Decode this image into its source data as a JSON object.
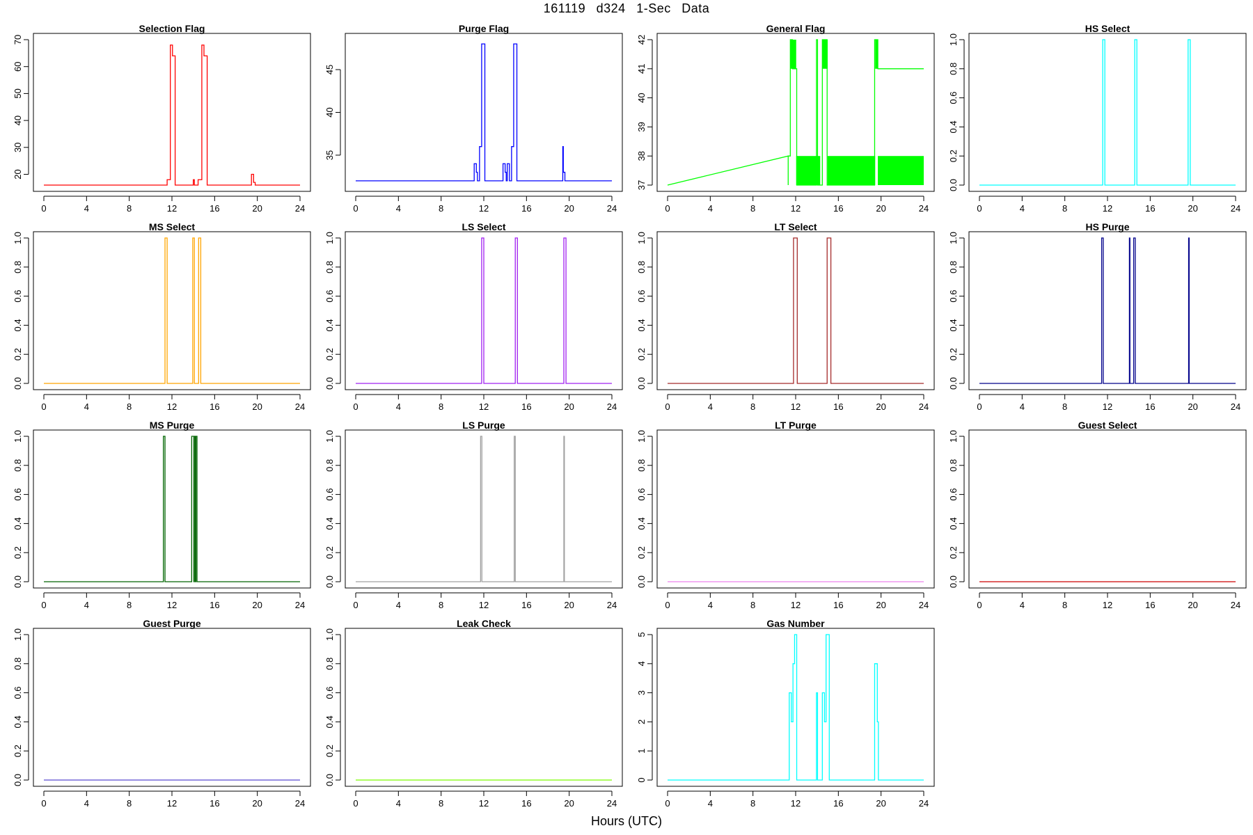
{
  "figure": {
    "title": "161119   d324   1-Sec Data",
    "xlabel": "Hours (UTC)"
  },
  "chart_data": [
    {
      "type": "line",
      "title": "Selection Flag",
      "color": "#ff0000",
      "xlim": [
        0,
        24
      ],
      "ylim": [
        16,
        70
      ],
      "xticks": [
        0,
        4,
        8,
        12,
        16,
        20,
        24
      ],
      "yticks": [
        20,
        30,
        40,
        50,
        60,
        70
      ],
      "series": [
        {
          "x": [
            0,
            11.55,
            11.55,
            11.85,
            11.85,
            12.05,
            12.05,
            12.3,
            12.3,
            14.0,
            14.0,
            14.1,
            14.1,
            14.45,
            14.45,
            14.8,
            14.8,
            15.0,
            15.0,
            15.3,
            15.3,
            19.45,
            19.45,
            19.65,
            19.65,
            19.8,
            19.8,
            24
          ],
          "y": [
            16,
            16,
            18,
            18,
            68,
            68,
            64,
            64,
            16,
            16,
            18,
            18,
            16,
            16,
            18,
            18,
            68,
            68,
            64,
            64,
            16,
            16,
            20,
            20,
            17,
            17,
            16,
            16
          ]
        }
      ]
    },
    {
      "type": "line",
      "title": "Purge Flag",
      "color": "#0000ff",
      "xlim": [
        0,
        24
      ],
      "ylim": [
        31.5,
        48.5
      ],
      "xticks": [
        0,
        4,
        8,
        12,
        16,
        20,
        24
      ],
      "yticks": [
        35,
        40,
        45
      ],
      "series": [
        {
          "x": [
            0,
            11.1,
            11.1,
            11.3,
            11.3,
            11.4,
            11.4,
            11.6,
            11.6,
            11.8,
            11.8,
            12.1,
            12.1,
            13.8,
            13.8,
            14.0,
            14.0,
            14.1,
            14.1,
            14.2,
            14.2,
            14.4,
            14.4,
            14.6,
            14.6,
            14.8,
            14.8,
            15.1,
            15.1,
            19.4,
            19.4,
            19.45,
            19.45,
            19.6,
            19.6,
            24
          ],
          "y": [
            32,
            32,
            34,
            34,
            33,
            33,
            32,
            32,
            36,
            36,
            48,
            48,
            32,
            32,
            34,
            34,
            33,
            33,
            32,
            32,
            34,
            34,
            32,
            32,
            36,
            36,
            48,
            48,
            32,
            32,
            36,
            36,
            33,
            33,
            32,
            32
          ]
        }
      ]
    },
    {
      "type": "line",
      "title": "General Flag",
      "color": "#00ff00",
      "xlim": [
        0,
        24
      ],
      "ylim": [
        37,
        42
      ],
      "xticks": [
        0,
        4,
        8,
        12,
        16,
        20,
        24
      ],
      "yticks": [
        37,
        38,
        39,
        40,
        41,
        42
      ],
      "series": [
        {
          "x": [
            0,
            11.3,
            11.3,
            11.3,
            11.5,
            11.5,
            11.7,
            11.7,
            12.1,
            12.1,
            13.95,
            13.95,
            14.05,
            14.05,
            14.5,
            14.5,
            14.95,
            14.95,
            19.4,
            19.4,
            19.7,
            19.7,
            24
          ],
          "y": [
            37,
            38,
            37,
            38,
            38,
            42,
            42,
            41,
            41,
            37,
            37,
            42,
            42,
            37,
            37,
            42,
            42,
            37,
            37,
            42,
            42,
            41,
            41
          ]
        }
      ],
      "filled_bands": [
        {
          "x0": 11.5,
          "x1": 12.05,
          "y0": 41,
          "y1": 42
        },
        {
          "x0": 12.05,
          "x1": 14.3,
          "y0": 37,
          "y1": 38
        },
        {
          "x0": 14.5,
          "x1": 15.0,
          "y0": 41,
          "y1": 42
        },
        {
          "x0": 15.0,
          "x1": 19.45,
          "y0": 37,
          "y1": 38
        },
        {
          "x0": 19.45,
          "x1": 19.7,
          "y0": 41,
          "y1": 42
        },
        {
          "x0": 19.7,
          "x1": 24.0,
          "y0": 37,
          "y1": 38
        }
      ]
    },
    {
      "type": "line",
      "title": "HS Select",
      "color": "#00ffff",
      "xlim": [
        0,
        24
      ],
      "ylim": [
        0,
        1
      ],
      "xticks": [
        0,
        4,
        8,
        12,
        16,
        20,
        24
      ],
      "yticks": [
        0.0,
        0.2,
        0.4,
        0.6,
        0.8,
        1.0
      ],
      "series": [
        {
          "x": [
            0,
            11.55,
            11.55,
            11.75,
            11.75,
            14.55,
            14.55,
            14.75,
            14.75,
            19.55,
            19.55,
            19.75,
            19.75,
            24
          ],
          "y": [
            0,
            0,
            1,
            1,
            0,
            0,
            1,
            1,
            0,
            0,
            1,
            1,
            0,
            0
          ]
        }
      ]
    },
    {
      "type": "line",
      "title": "MS Select",
      "color": "#ffa500",
      "xlim": [
        0,
        24
      ],
      "ylim": [
        0,
        1
      ],
      "xticks": [
        0,
        4,
        8,
        12,
        16,
        20,
        24
      ],
      "yticks": [
        0.0,
        0.2,
        0.4,
        0.6,
        0.8,
        1.0
      ],
      "series": [
        {
          "x": [
            0,
            11.35,
            11.35,
            11.55,
            11.55,
            13.95,
            13.95,
            14.1,
            14.1,
            14.5,
            14.5,
            14.7,
            14.7,
            24
          ],
          "y": [
            0,
            0,
            1,
            1,
            0,
            0,
            1,
            1,
            0,
            0,
            1,
            1,
            0,
            0
          ]
        }
      ]
    },
    {
      "type": "line",
      "title": "LS Select",
      "color": "#a020f0",
      "xlim": [
        0,
        24
      ],
      "ylim": [
        0,
        1
      ],
      "xticks": [
        0,
        4,
        8,
        12,
        16,
        20,
        24
      ],
      "yticks": [
        0.0,
        0.2,
        0.4,
        0.6,
        0.8,
        1.0
      ],
      "series": [
        {
          "x": [
            0,
            11.8,
            11.8,
            12.0,
            12.0,
            14.95,
            14.95,
            15.15,
            15.15,
            19.5,
            19.5,
            19.7,
            19.7,
            24
          ],
          "y": [
            0,
            0,
            1,
            1,
            0,
            0,
            1,
            1,
            0,
            0,
            1,
            1,
            0,
            0
          ]
        }
      ]
    },
    {
      "type": "line",
      "title": "LT Select",
      "color": "#a52a2a",
      "xlim": [
        0,
        24
      ],
      "ylim": [
        0,
        1
      ],
      "xticks": [
        0,
        4,
        8,
        12,
        16,
        20,
        24
      ],
      "yticks": [
        0.0,
        0.2,
        0.4,
        0.6,
        0.8,
        1.0
      ],
      "series": [
        {
          "x": [
            0,
            11.8,
            11.8,
            12.15,
            12.15,
            14.95,
            14.95,
            15.3,
            15.3,
            24
          ],
          "y": [
            0,
            0,
            1,
            1,
            0,
            0,
            1,
            1,
            0,
            0
          ]
        }
      ]
    },
    {
      "type": "line",
      "title": "HS Purge",
      "color": "#00008b",
      "xlim": [
        0,
        24
      ],
      "ylim": [
        0,
        1
      ],
      "xticks": [
        0,
        4,
        8,
        12,
        16,
        20,
        24
      ],
      "yticks": [
        0.0,
        0.2,
        0.4,
        0.6,
        0.8,
        1.0
      ],
      "series": [
        {
          "x": [
            0,
            11.45,
            11.45,
            11.6,
            11.6,
            14.05,
            14.05,
            14.1,
            14.1,
            14.45,
            14.45,
            14.6,
            14.6,
            19.6,
            19.6,
            19.65,
            19.65,
            24
          ],
          "y": [
            0,
            0,
            1,
            1,
            0,
            0,
            1,
            1,
            0,
            0,
            1,
            1,
            0,
            0,
            1,
            1,
            0,
            0
          ]
        }
      ]
    },
    {
      "type": "line",
      "title": "MS Purge",
      "color": "#006400",
      "xlim": [
        0,
        24
      ],
      "ylim": [
        0,
        1
      ],
      "xticks": [
        0,
        4,
        8,
        12,
        16,
        20,
        24
      ],
      "yticks": [
        0.0,
        0.2,
        0.4,
        0.6,
        0.8,
        1.0
      ],
      "series": [
        {
          "x": [
            0,
            11.2,
            11.2,
            11.35,
            11.35,
            13.85,
            13.85,
            14.05,
            14.05,
            14.1,
            14.1,
            14.2,
            14.2,
            14.25,
            14.25,
            14.35,
            14.35,
            24
          ],
          "y": [
            0,
            0,
            1,
            1,
            0,
            0,
            1,
            1,
            0,
            0,
            1,
            1,
            0,
            0,
            1,
            1,
            0,
            0
          ]
        }
      ]
    },
    {
      "type": "line",
      "title": "LS Purge",
      "color": "#a0a0a0",
      "xlim": [
        0,
        24
      ],
      "ylim": [
        0,
        1
      ],
      "xticks": [
        0,
        4,
        8,
        12,
        16,
        20,
        24
      ],
      "yticks": [
        0.0,
        0.2,
        0.4,
        0.6,
        0.8,
        1.0
      ],
      "series": [
        {
          "x": [
            0,
            11.7,
            11.7,
            11.82,
            11.82,
            14.85,
            14.85,
            14.95,
            14.95,
            19.5,
            19.5,
            19.55,
            19.55,
            24
          ],
          "y": [
            0,
            0,
            1,
            1,
            0,
            0,
            1,
            1,
            0,
            0,
            1,
            1,
            0,
            0
          ]
        }
      ]
    },
    {
      "type": "line",
      "title": "LT Purge",
      "color": "#ee82ee",
      "xlim": [
        0,
        24
      ],
      "ylim": [
        0,
        1
      ],
      "xticks": [
        0,
        4,
        8,
        12,
        16,
        20,
        24
      ],
      "yticks": [
        0.0,
        0.2,
        0.4,
        0.6,
        0.8,
        1.0
      ],
      "series": [
        {
          "x": [
            0,
            24
          ],
          "y": [
            0,
            0
          ]
        }
      ]
    },
    {
      "type": "line",
      "title": "Guest Select",
      "color": "#cd0000",
      "xlim": [
        0,
        24
      ],
      "ylim": [
        0,
        1
      ],
      "xticks": [
        0,
        4,
        8,
        12,
        16,
        20,
        24
      ],
      "yticks": [
        0.0,
        0.2,
        0.4,
        0.6,
        0.8,
        1.0
      ],
      "series": [
        {
          "x": [
            0,
            24
          ],
          "y": [
            0,
            0
          ]
        }
      ]
    },
    {
      "type": "line",
      "title": "Guest Purge",
      "color": "#5a4bd1",
      "xlim": [
        0,
        24
      ],
      "ylim": [
        0,
        1
      ],
      "xticks": [
        0,
        4,
        8,
        12,
        16,
        20,
        24
      ],
      "yticks": [
        0.0,
        0.2,
        0.4,
        0.6,
        0.8,
        1.0
      ],
      "series": [
        {
          "x": [
            0,
            24
          ],
          "y": [
            0,
            0
          ]
        }
      ]
    },
    {
      "type": "line",
      "title": "Leak Check",
      "color": "#7cfc00",
      "xlim": [
        0,
        24
      ],
      "ylim": [
        0,
        1
      ],
      "xticks": [
        0,
        4,
        8,
        12,
        16,
        20,
        24
      ],
      "yticks": [
        0.0,
        0.2,
        0.4,
        0.6,
        0.8,
        1.0
      ],
      "series": [
        {
          "x": [
            0,
            24
          ],
          "y": [
            0,
            0
          ]
        }
      ]
    },
    {
      "type": "line",
      "title": "Gas Number",
      "color": "#00ffff",
      "xlim": [
        0,
        24
      ],
      "ylim": [
        0,
        5
      ],
      "xticks": [
        0,
        4,
        8,
        12,
        16,
        20,
        24
      ],
      "yticks": [
        0,
        1,
        2,
        3,
        4,
        5
      ],
      "series": [
        {
          "x": [
            0,
            11.4,
            11.4,
            11.6,
            11.6,
            11.75,
            11.75,
            11.9,
            11.9,
            12.1,
            12.1,
            13.95,
            13.95,
            14.05,
            14.05,
            14.5,
            14.5,
            14.7,
            14.7,
            14.85,
            14.85,
            15.15,
            15.15,
            19.4,
            19.4,
            19.65,
            19.65,
            19.75,
            19.75,
            24
          ],
          "y": [
            0,
            0,
            3,
            3,
            2,
            2,
            4,
            4,
            5,
            5,
            0,
            0,
            3,
            3,
            0,
            0,
            3,
            3,
            2,
            2,
            5,
            5,
            0,
            0,
            4,
            4,
            2,
            2,
            0,
            0
          ]
        }
      ]
    }
  ]
}
